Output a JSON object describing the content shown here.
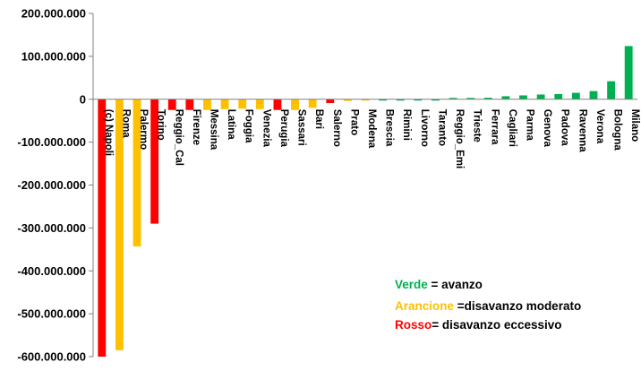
{
  "chart_data": {
    "type": "bar",
    "title": "",
    "xlabel": "",
    "ylabel": "",
    "ylim": [
      -600000000,
      200000000
    ],
    "y_ticks": [
      "200.000.000",
      "100.000.000",
      "0",
      "-100.000.000",
      "-200.000.000",
      "-300.000.000",
      "-400.000.000",
      "-500.000.000",
      "-600.000.000"
    ],
    "y_tick_values": [
      200000000,
      100000000,
      0,
      -100000000,
      -200000000,
      -300000000,
      -400000000,
      -500000000,
      -600000000
    ],
    "grid": false,
    "categories": [
      "(c) Napoli",
      "Roma",
      "Palermo",
      "Torino",
      "Reggio_Cal",
      "Firenze",
      "Messina",
      "Latina",
      "Foggia",
      "Venezia",
      "Perugia",
      "Sassari",
      "Bari",
      "Salerno",
      "Prato",
      "Modena",
      "Brescia",
      "Rimini",
      "Livorno",
      "Taranto",
      "Reggio_Emi",
      "Trieste",
      "Ferrara",
      "Cagliari",
      "Parma",
      "Genova",
      "Padova",
      "Ravenna",
      "Verona",
      "Bologna",
      "Milano"
    ],
    "values": [
      -600000000,
      -585000000,
      -343000000,
      -290000000,
      -25000000,
      -25000000,
      -25000000,
      -23000000,
      -22000000,
      -23000000,
      -25000000,
      -25000000,
      -20000000,
      -9000000,
      -4000000,
      -1000000,
      -2000000,
      -1500000,
      -1500000,
      -1500000,
      1500000,
      3000000,
      3500000,
      7000000,
      9000000,
      11000000,
      12000000,
      15000000,
      19000000,
      42000000,
      124000000
    ],
    "colors": [
      "#ff0000",
      "#ffc000",
      "#ffc000",
      "#ff0000",
      "#ff0000",
      "#ff0000",
      "#ffc000",
      "#ffc000",
      "#ffc000",
      "#ffc000",
      "#ff0000",
      "#ffc000",
      "#ffc000",
      "#ff0000",
      "#ffc000",
      "#ffc000",
      "#00b050",
      "#00b050",
      "#00b050",
      "#00b050",
      "#00b050",
      "#00b050",
      "#00b050",
      "#00b050",
      "#00b050",
      "#00b050",
      "#00b050",
      "#00b050",
      "#00b050",
      "#00b050",
      "#00b050"
    ],
    "legend": {
      "placement": "bottom-right",
      "items": [
        {
          "key": "Verde",
          "text": " = avanzo",
          "color": "#00b050"
        },
        {
          "key": "Arancione",
          "text": " =disavanzo moderato",
          "color": "#ffc000"
        },
        {
          "key": "Rosso",
          "text": "= disavanzo eccessivo",
          "color": "#ff0000"
        }
      ]
    }
  }
}
